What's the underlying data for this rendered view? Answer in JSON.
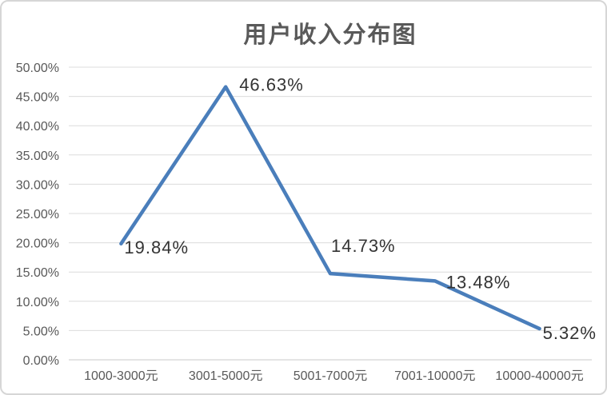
{
  "chart_data": {
    "type": "line",
    "title": "用户收入分布图",
    "categories": [
      "1000-3000元",
      "3001-5000元",
      "5001-7000元",
      "7001-10000元",
      "10000-40000元"
    ],
    "values": [
      19.84,
      46.63,
      14.73,
      13.48,
      5.32
    ],
    "data_labels": [
      "19.84%",
      "46.63%",
      "14.73%",
      "13.48%",
      "5.32%"
    ],
    "xlabel": "",
    "ylabel": "",
    "ylim": [
      0,
      50
    ],
    "ytick_step": 5,
    "yticks": [
      "0.00%",
      "5.00%",
      "10.00%",
      "15.00%",
      "20.00%",
      "25.00%",
      "30.00%",
      "35.00%",
      "40.00%",
      "45.00%",
      "50.00%"
    ],
    "grid": "horizontal",
    "legend": "none",
    "colors": {
      "line": "#4A7EBB",
      "grid": "#DCDCDC",
      "axis": "#C9C9C9",
      "tick_text": "#595959",
      "data_label_text": "#333333",
      "title_text": "#595959",
      "card_border": "#D6D6D6",
      "background": "#FFFFFF"
    }
  }
}
